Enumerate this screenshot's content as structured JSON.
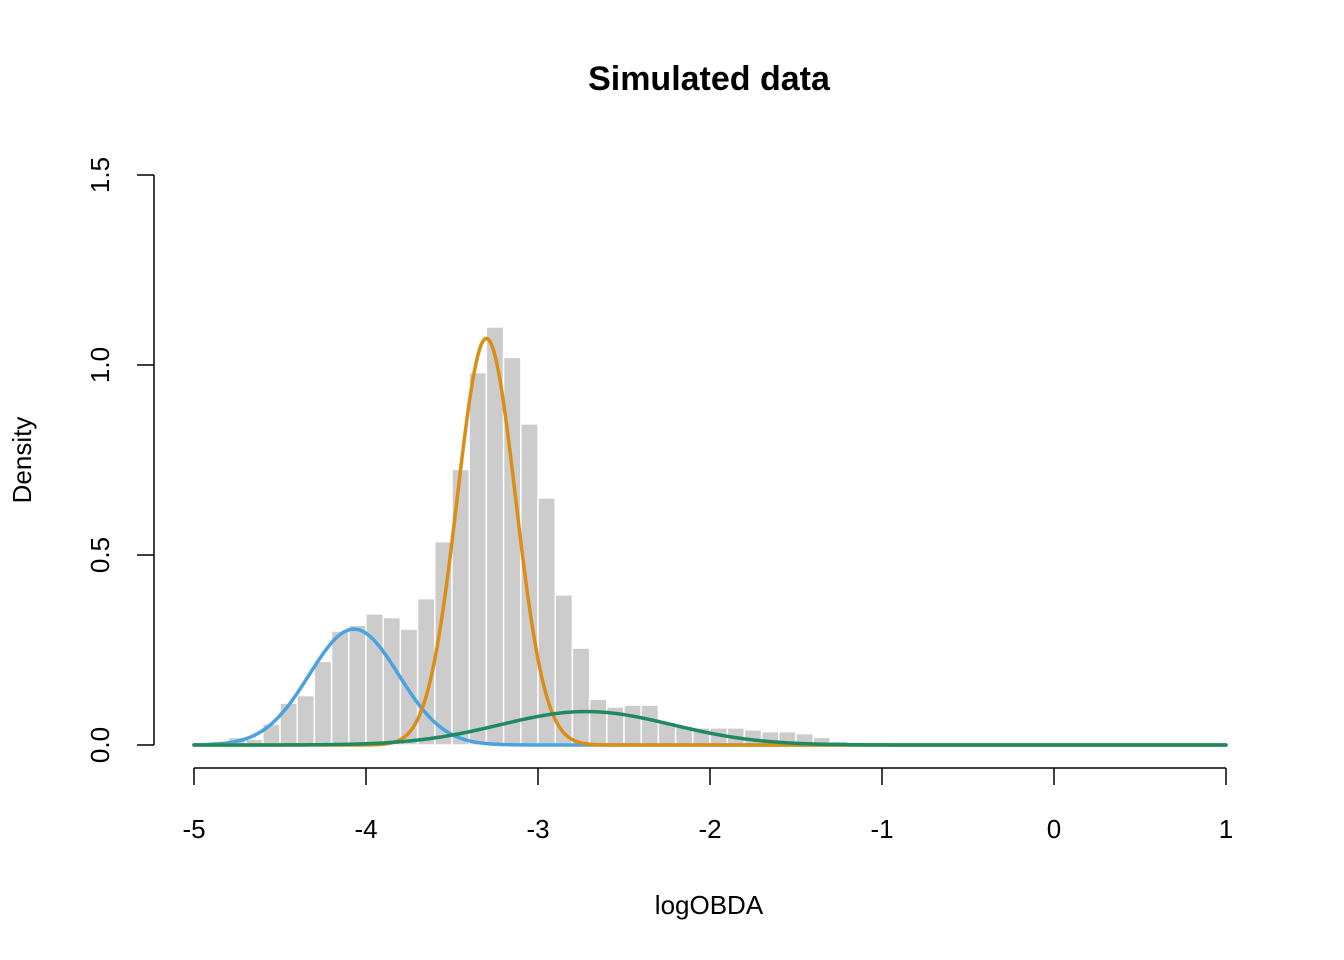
{
  "chart_data": {
    "type": "bar",
    "title": "Simulated data",
    "xlabel": "logOBDA",
    "ylabel": "Density",
    "xlim": [
      -5,
      1
    ],
    "ylim": [
      0,
      1.5
    ],
    "x_ticks": [
      "-5",
      "-4",
      "-3",
      "-2",
      "-1",
      "0",
      "1"
    ],
    "y_ticks": [
      "0.0",
      "0.5",
      "1.0",
      "1.5"
    ],
    "grid": false,
    "histogram": {
      "bin_width": 0.1,
      "bin_starts": [
        -5.0,
        -4.9,
        -4.8,
        -4.7,
        -4.6,
        -4.5,
        -4.4,
        -4.3,
        -4.2,
        -4.1,
        -4.0,
        -3.9,
        -3.8,
        -3.7,
        -3.6,
        -3.5,
        -3.4,
        -3.3,
        -3.2,
        -3.1,
        -3.0,
        -2.9,
        -2.8,
        -2.7,
        -2.6,
        -2.5,
        -2.4,
        -2.3,
        -2.2,
        -2.1,
        -2.0,
        -1.9,
        -1.8,
        -1.7,
        -1.6,
        -1.5,
        -1.4,
        -1.3,
        -1.2,
        -1.1,
        -1.0
      ],
      "densities": [
        0.005,
        0.01,
        0.02,
        0.015,
        0.055,
        0.11,
        0.13,
        0.22,
        0.3,
        0.315,
        0.345,
        0.335,
        0.305,
        0.385,
        0.535,
        0.725,
        0.98,
        1.1,
        1.02,
        0.845,
        0.65,
        0.395,
        0.255,
        0.12,
        0.1,
        0.105,
        0.105,
        0.06,
        0.05,
        0.045,
        0.045,
        0.045,
        0.04,
        0.035,
        0.035,
        0.03,
        0.02,
        0.01,
        0.005,
        0.005,
        0.003
      ],
      "color": "#cccccc"
    },
    "series": [
      {
        "type": "normal_density",
        "mean": -4.07,
        "sd": 0.26,
        "peak": 0.305,
        "color": "#4aa3df"
      },
      {
        "type": "normal_density",
        "mean": -3.3,
        "sd": 0.17,
        "peak": 1.07,
        "color": "#db8e16"
      },
      {
        "type": "normal_density",
        "mean": -2.72,
        "sd": 0.5,
        "peak": 0.088,
        "color": "#1f8a60"
      }
    ]
  }
}
